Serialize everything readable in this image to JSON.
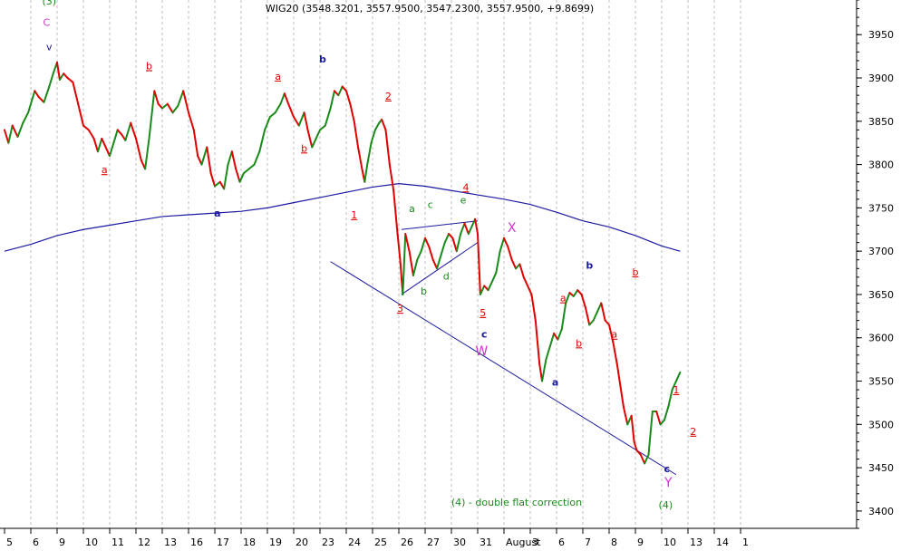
{
  "chart_data": {
    "type": "line",
    "title": "WIG20 (3548.3201, 3557.9500, 3547.2300, 3557.9500, +9.8699)",
    "ylim": [
      3380,
      3990
    ],
    "y_ticks": [
      3400,
      3450,
      3500,
      3550,
      3600,
      3650,
      3700,
      3750,
      3800,
      3850,
      3900,
      3950
    ],
    "grid": "vertical-dotted",
    "x_categories": [
      "5",
      "6",
      "9",
      "10",
      "11",
      "12",
      "13",
      "16",
      "17",
      "18",
      "19",
      "20",
      "23",
      "24",
      "25",
      "26",
      "27",
      "30",
      "31",
      "August",
      "3",
      "6",
      "7",
      "8",
      "9",
      "10",
      "13",
      "14",
      "1"
    ],
    "x_labels_shown": [
      "5",
      "6",
      "9",
      "10",
      "11",
      "12",
      "13",
      "16",
      "17",
      "18",
      "19",
      "20",
      "23",
      "24",
      "25",
      "26",
      "27",
      "30",
      "31",
      "August",
      "3",
      "6",
      "7",
      "8",
      "9",
      "10",
      "13",
      "14",
      "1"
    ],
    "price_series": {
      "name": "WIG20",
      "colors": {
        "up": "#1a8a1a",
        "down": "#e00000"
      },
      "points": [
        [
          0,
          3840
        ],
        [
          0.15,
          3825
        ],
        [
          0.3,
          3845
        ],
        [
          0.5,
          3832
        ],
        [
          0.7,
          3848
        ],
        [
          0.9,
          3860
        ],
        [
          1.0,
          3870
        ],
        [
          1.15,
          3885
        ],
        [
          1.3,
          3878
        ],
        [
          1.5,
          3872
        ],
        [
          1.7,
          3890
        ],
        [
          1.85,
          3905
        ],
        [
          2.0,
          3918
        ],
        [
          2.1,
          3898
        ],
        [
          2.25,
          3905
        ],
        [
          2.4,
          3900
        ],
        [
          2.6,
          3895
        ],
        [
          2.8,
          3870
        ],
        [
          3.0,
          3845
        ],
        [
          3.2,
          3840
        ],
        [
          3.4,
          3830
        ],
        [
          3.55,
          3815
        ],
        [
          3.7,
          3830
        ],
        [
          3.85,
          3820
        ],
        [
          4.0,
          3810
        ],
        [
          4.15,
          3825
        ],
        [
          4.3,
          3840
        ],
        [
          4.45,
          3835
        ],
        [
          4.6,
          3828
        ],
        [
          4.8,
          3848
        ],
        [
          5.0,
          3830
        ],
        [
          5.2,
          3805
        ],
        [
          5.35,
          3795
        ],
        [
          5.5,
          3830
        ],
        [
          5.7,
          3885
        ],
        [
          5.85,
          3870
        ],
        [
          6.0,
          3865
        ],
        [
          6.2,
          3870
        ],
        [
          6.4,
          3860
        ],
        [
          6.6,
          3868
        ],
        [
          6.8,
          3885
        ],
        [
          7.0,
          3860
        ],
        [
          7.2,
          3840
        ],
        [
          7.35,
          3810
        ],
        [
          7.5,
          3800
        ],
        [
          7.7,
          3820
        ],
        [
          7.85,
          3790
        ],
        [
          8.0,
          3775
        ],
        [
          8.2,
          3780
        ],
        [
          8.35,
          3772
        ],
        [
          8.5,
          3800
        ],
        [
          8.65,
          3815
        ],
        [
          8.8,
          3795
        ],
        [
          8.95,
          3780
        ],
        [
          9.1,
          3790
        ],
        [
          9.3,
          3795
        ],
        [
          9.5,
          3800
        ],
        [
          9.7,
          3815
        ],
        [
          9.9,
          3840
        ],
        [
          10.1,
          3855
        ],
        [
          10.3,
          3860
        ],
        [
          10.5,
          3870
        ],
        [
          10.65,
          3882
        ],
        [
          10.8,
          3870
        ],
        [
          11.0,
          3855
        ],
        [
          11.2,
          3845
        ],
        [
          11.4,
          3860
        ],
        [
          11.55,
          3838
        ],
        [
          11.7,
          3820
        ],
        [
          11.85,
          3830
        ],
        [
          12.0,
          3840
        ],
        [
          12.2,
          3845
        ],
        [
          12.4,
          3865
        ],
        [
          12.55,
          3885
        ],
        [
          12.7,
          3880
        ],
        [
          12.85,
          3890
        ],
        [
          13.0,
          3885
        ],
        [
          13.15,
          3870
        ],
        [
          13.3,
          3850
        ],
        [
          13.45,
          3820
        ],
        [
          13.6,
          3795
        ],
        [
          13.7,
          3780
        ],
        [
          13.8,
          3800
        ],
        [
          13.95,
          3825
        ],
        [
          14.1,
          3840
        ],
        [
          14.25,
          3848
        ],
        [
          14.35,
          3852
        ],
        [
          14.5,
          3840
        ],
        [
          14.65,
          3800
        ],
        [
          14.8,
          3770
        ],
        [
          14.95,
          3720
        ],
        [
          15.05,
          3690
        ],
        [
          15.15,
          3650
        ],
        [
          15.25,
          3720
        ],
        [
          15.4,
          3700
        ],
        [
          15.55,
          3672
        ],
        [
          15.7,
          3690
        ],
        [
          15.85,
          3700
        ],
        [
          16.0,
          3715
        ],
        [
          16.15,
          3705
        ],
        [
          16.3,
          3690
        ],
        [
          16.45,
          3680
        ],
        [
          16.6,
          3695
        ],
        [
          16.75,
          3710
        ],
        [
          16.9,
          3720
        ],
        [
          17.05,
          3715
        ],
        [
          17.2,
          3700
        ],
        [
          17.35,
          3720
        ],
        [
          17.5,
          3732
        ],
        [
          17.65,
          3720
        ],
        [
          17.8,
          3730
        ],
        [
          17.9,
          3737
        ],
        [
          18.0,
          3720
        ],
        [
          18.1,
          3650
        ],
        [
          18.25,
          3660
        ],
        [
          18.4,
          3655
        ],
        [
          18.55,
          3665
        ],
        [
          18.7,
          3675
        ],
        [
          18.85,
          3700
        ],
        [
          19.0,
          3715
        ],
        [
          19.15,
          3705
        ],
        [
          19.3,
          3690
        ],
        [
          19.45,
          3680
        ],
        [
          19.6,
          3685
        ],
        [
          19.75,
          3670
        ],
        [
          19.9,
          3660
        ],
        [
          20.05,
          3650
        ],
        [
          20.2,
          3620
        ],
        [
          20.35,
          3570
        ],
        [
          20.45,
          3550
        ],
        [
          20.6,
          3575
        ],
        [
          20.75,
          3590
        ],
        [
          20.9,
          3605
        ],
        [
          21.05,
          3598
        ],
        [
          21.2,
          3610
        ],
        [
          21.35,
          3640
        ],
        [
          21.5,
          3652
        ],
        [
          21.65,
          3648
        ],
        [
          21.8,
          3655
        ],
        [
          21.95,
          3650
        ],
        [
          22.1,
          3635
        ],
        [
          22.25,
          3615
        ],
        [
          22.4,
          3620
        ],
        [
          22.55,
          3630
        ],
        [
          22.7,
          3640
        ],
        [
          22.85,
          3620
        ],
        [
          23.0,
          3615
        ],
        [
          23.15,
          3595
        ],
        [
          23.3,
          3570
        ],
        [
          23.45,
          3540
        ],
        [
          23.55,
          3520
        ],
        [
          23.7,
          3500
        ],
        [
          23.85,
          3510
        ],
        [
          23.95,
          3480
        ],
        [
          24.05,
          3470
        ],
        [
          24.2,
          3465
        ],
        [
          24.35,
          3455
        ],
        [
          24.5,
          3465
        ],
        [
          24.65,
          3515
        ],
        [
          24.8,
          3515
        ],
        [
          24.95,
          3500
        ],
        [
          25.1,
          3505
        ],
        [
          25.25,
          3520
        ],
        [
          25.4,
          3540
        ],
        [
          25.55,
          3550
        ],
        [
          25.7,
          3560
        ]
      ]
    },
    "moving_average": {
      "color": "#1a1aa0",
      "points": [
        [
          0,
          3700
        ],
        [
          1,
          3708
        ],
        [
          2,
          3718
        ],
        [
          3,
          3725
        ],
        [
          4,
          3730
        ],
        [
          5,
          3735
        ],
        [
          6,
          3740
        ],
        [
          7,
          3742
        ],
        [
          8,
          3744
        ],
        [
          9,
          3746
        ],
        [
          10,
          3750
        ],
        [
          11,
          3756
        ],
        [
          12,
          3762
        ],
        [
          13,
          3768
        ],
        [
          14,
          3774
        ],
        [
          15,
          3778
        ],
        [
          16,
          3775
        ],
        [
          17,
          3770
        ],
        [
          18,
          3765
        ],
        [
          19,
          3760
        ],
        [
          20,
          3754
        ],
        [
          21,
          3745
        ],
        [
          22,
          3735
        ],
        [
          23,
          3728
        ],
        [
          24,
          3718
        ],
        [
          25,
          3706
        ],
        [
          25.7,
          3700
        ]
      ]
    },
    "trendlines": [
      {
        "color": "#1a1aa0",
        "from": [
          12.4,
          3688
        ],
        "to": [
          25.55,
          3442
        ]
      },
      {
        "color": "#1a1aa0",
        "from": [
          15.1,
          3650
        ],
        "to": [
          18.0,
          3710
        ]
      },
      {
        "color": "#1a1aa0",
        "from": [
          15.1,
          3725
        ],
        "to": [
          18.0,
          3735
        ]
      }
    ],
    "annotations": [
      {
        "text": "(3)",
        "x": 1.7,
        "y": 3985,
        "color": "#1a8a1a",
        "style": "plain"
      },
      {
        "text": "C",
        "x": 1.6,
        "y": 3960,
        "color": "#cc33cc",
        "style": "plain"
      },
      {
        "text": "v",
        "x": 1.7,
        "y": 3932,
        "color": "#1a1aa0",
        "style": "plain"
      },
      {
        "text": "a",
        "x": 3.8,
        "y": 3790,
        "color": "#e00000",
        "style": "underline"
      },
      {
        "text": "b",
        "x": 5.5,
        "y": 3910,
        "color": "#e00000",
        "style": "underline"
      },
      {
        "text": "a",
        "x": 8.1,
        "y": 3740,
        "color": "#1a1aa0",
        "style": "bold"
      },
      {
        "text": "a",
        "x": 10.4,
        "y": 3898,
        "color": "#e00000",
        "style": "underline"
      },
      {
        "text": "b",
        "x": 11.4,
        "y": 3815,
        "color": "#e00000",
        "style": "underline"
      },
      {
        "text": "b",
        "x": 12.1,
        "y": 3918,
        "color": "#1a1aa0",
        "style": "bold"
      },
      {
        "text": "1",
        "x": 13.3,
        "y": 3738,
        "color": "#e00000",
        "style": "underline"
      },
      {
        "text": "2",
        "x": 14.6,
        "y": 3875,
        "color": "#e00000",
        "style": "underline"
      },
      {
        "text": "3",
        "x": 15.05,
        "y": 3630,
        "color": "#e00000",
        "style": "underline"
      },
      {
        "text": "a",
        "x": 15.5,
        "y": 3745,
        "color": "#1a8a1a",
        "style": "plain"
      },
      {
        "text": "b",
        "x": 15.95,
        "y": 3650,
        "color": "#1a8a1a",
        "style": "plain"
      },
      {
        "text": "c",
        "x": 16.2,
        "y": 3750,
        "color": "#1a8a1a",
        "style": "plain"
      },
      {
        "text": "d",
        "x": 16.8,
        "y": 3667,
        "color": "#1a8a1a",
        "style": "plain"
      },
      {
        "text": "e",
        "x": 17.45,
        "y": 3755,
        "color": "#1a8a1a",
        "style": "plain"
      },
      {
        "text": "4",
        "x": 17.55,
        "y": 3770,
        "color": "#e00000",
        "style": "underline"
      },
      {
        "text": "5",
        "x": 18.2,
        "y": 3625,
        "color": "#e00000",
        "style": "underline"
      },
      {
        "text": "c",
        "x": 18.25,
        "y": 3600,
        "color": "#1a1aa0",
        "style": "bold"
      },
      {
        "text": "W",
        "x": 18.15,
        "y": 3580,
        "color": "#cc33cc",
        "style": "large"
      },
      {
        "text": "X",
        "x": 19.3,
        "y": 3722,
        "color": "#cc33cc",
        "style": "large"
      },
      {
        "text": "a",
        "x": 20.95,
        "y": 3545,
        "color": "#1a1aa0",
        "style": "bold"
      },
      {
        "text": "a",
        "x": 21.25,
        "y": 3642,
        "color": "#e00000",
        "style": "underline"
      },
      {
        "text": "b",
        "x": 21.85,
        "y": 3590,
        "color": "#e00000",
        "style": "underline"
      },
      {
        "text": "b",
        "x": 22.25,
        "y": 3680,
        "color": "#1a1aa0",
        "style": "bold"
      },
      {
        "text": "a",
        "x": 23.2,
        "y": 3600,
        "color": "#e00000",
        "style": "underline"
      },
      {
        "text": "b",
        "x": 24.0,
        "y": 3672,
        "color": "#e00000",
        "style": "underline"
      },
      {
        "text": "1",
        "x": 25.55,
        "y": 3536,
        "color": "#e00000",
        "style": "underline"
      },
      {
        "text": "2",
        "x": 26.2,
        "y": 3488,
        "color": "#e00000",
        "style": "underline"
      },
      {
        "text": "c",
        "x": 25.2,
        "y": 3445,
        "color": "#1a1aa0",
        "style": "bold"
      },
      {
        "text": "Y",
        "x": 25.25,
        "y": 3428,
        "color": "#cc33cc",
        "style": "large"
      },
      {
        "text": "(4)",
        "x": 25.15,
        "y": 3403,
        "color": "#1a8a1a",
        "style": "plain"
      }
    ],
    "note": "(4) - double flat correction"
  }
}
